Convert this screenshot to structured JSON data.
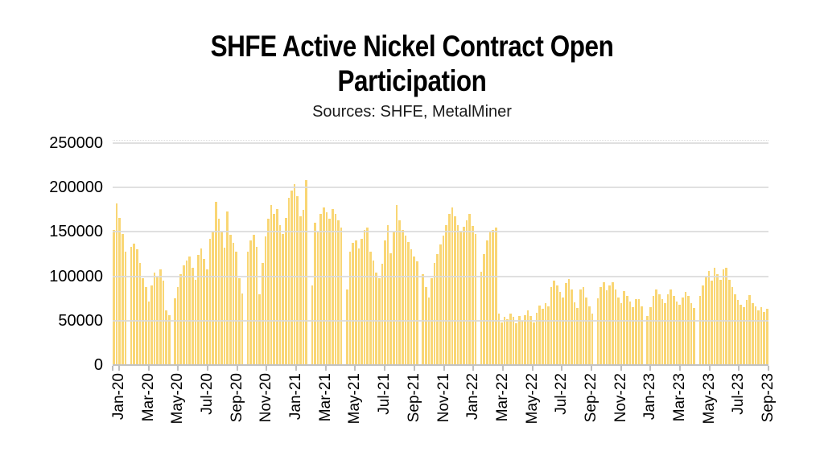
{
  "title": {
    "lines": [
      "SHFE Active Nickel Contract Open",
      "Participation"
    ],
    "subtitle": "Sources: SHFE, MetalMiner"
  },
  "chart_data": {
    "type": "bar",
    "title": "SHFE Active Nickel Contract Open Participation",
    "subtitle": "Sources: SHFE, MetalMiner",
    "xlabel": "",
    "ylabel": "",
    "ylim": [
      0,
      250000
    ],
    "ytick_interval": 50000,
    "ytick_labels": [
      "250000",
      "200000",
      "150000",
      "100000",
      "50000",
      "0"
    ],
    "xtick_labels": [
      "Jan-20",
      "Mar-20",
      "May-20",
      "Jul-20",
      "Sep-20",
      "Nov-20",
      "Jan-21",
      "Mar-21",
      "May-21",
      "Jul-21",
      "Sep-21",
      "Nov-21",
      "Jan-22",
      "Mar-22",
      "May-22",
      "Jul-22",
      "Sep-22",
      "Nov-22",
      "Jan-23",
      "Mar-23",
      "May-23",
      "Jul-23",
      "Sep-23"
    ],
    "grid": true,
    "legend": false,
    "bar_color": "#F9D674",
    "gridline_color": "#DADADA",
    "axis_color": "#C2C2C2",
    "tick_color": "#BFBFBF",
    "values": [
      152000,
      182000,
      166000,
      148000,
      128000,
      0,
      133000,
      137000,
      130000,
      115000,
      98000,
      88000,
      72000,
      90000,
      104000,
      100000,
      108000,
      95000,
      62000,
      56000,
      0,
      75000,
      88000,
      102000,
      112000,
      118000,
      122000,
      110000,
      96000,
      124000,
      131000,
      120000,
      108000,
      142000,
      150000,
      184000,
      165000,
      150000,
      132000,
      173000,
      147000,
      138000,
      128000,
      98000,
      81000,
      0,
      128000,
      140000,
      147000,
      133000,
      80000,
      115000,
      145000,
      165000,
      180000,
      170000,
      176000,
      158000,
      148000,
      166000,
      188000,
      197000,
      204000,
      190000,
      168000,
      175000,
      208000,
      0,
      90000,
      160000,
      150000,
      170000,
      178000,
      172000,
      165000,
      176000,
      170000,
      163000,
      155000,
      0,
      85000,
      128000,
      138000,
      140000,
      131000,
      142000,
      152000,
      155000,
      128000,
      118000,
      104000,
      98000,
      114000,
      140000,
      158000,
      126000,
      150000,
      180000,
      163000,
      152000,
      146000,
      139000,
      130000,
      122000,
      117000,
      0,
      102000,
      88000,
      76000,
      98000,
      115000,
      125000,
      136000,
      146000,
      158000,
      170000,
      178000,
      168000,
      158000,
      151000,
      156000,
      163000,
      170000,
      157000,
      148000,
      0,
      105000,
      125000,
      140000,
      150000,
      152000,
      155000,
      58000,
      48000,
      54000,
      52000,
      58000,
      54000,
      47000,
      55000,
      50000,
      56000,
      62000,
      55000,
      48000,
      59000,
      67000,
      63000,
      70000,
      66000,
      88000,
      95000,
      90000,
      82000,
      76000,
      92000,
      97000,
      85000,
      71000,
      64000,
      85000,
      88000,
      76000,
      66000,
      58000,
      0,
      75000,
      88000,
      93000,
      84000,
      90000,
      93000,
      85000,
      76000,
      70000,
      83000,
      78000,
      72000,
      65000,
      74000,
      74000,
      66000,
      0,
      55000,
      65000,
      78000,
      85000,
      80000,
      74000,
      70000,
      80000,
      85000,
      78000,
      72000,
      68000,
      76000,
      82000,
      78000,
      70000,
      64000,
      0,
      78000,
      90000,
      100000,
      106000,
      95000,
      110000,
      102000,
      96000,
      108000,
      110000,
      96000,
      88000,
      80000,
      73000,
      68000,
      65000,
      73000,
      79000,
      70000,
      66000,
      62000,
      65000,
      60000,
      63000
    ]
  }
}
